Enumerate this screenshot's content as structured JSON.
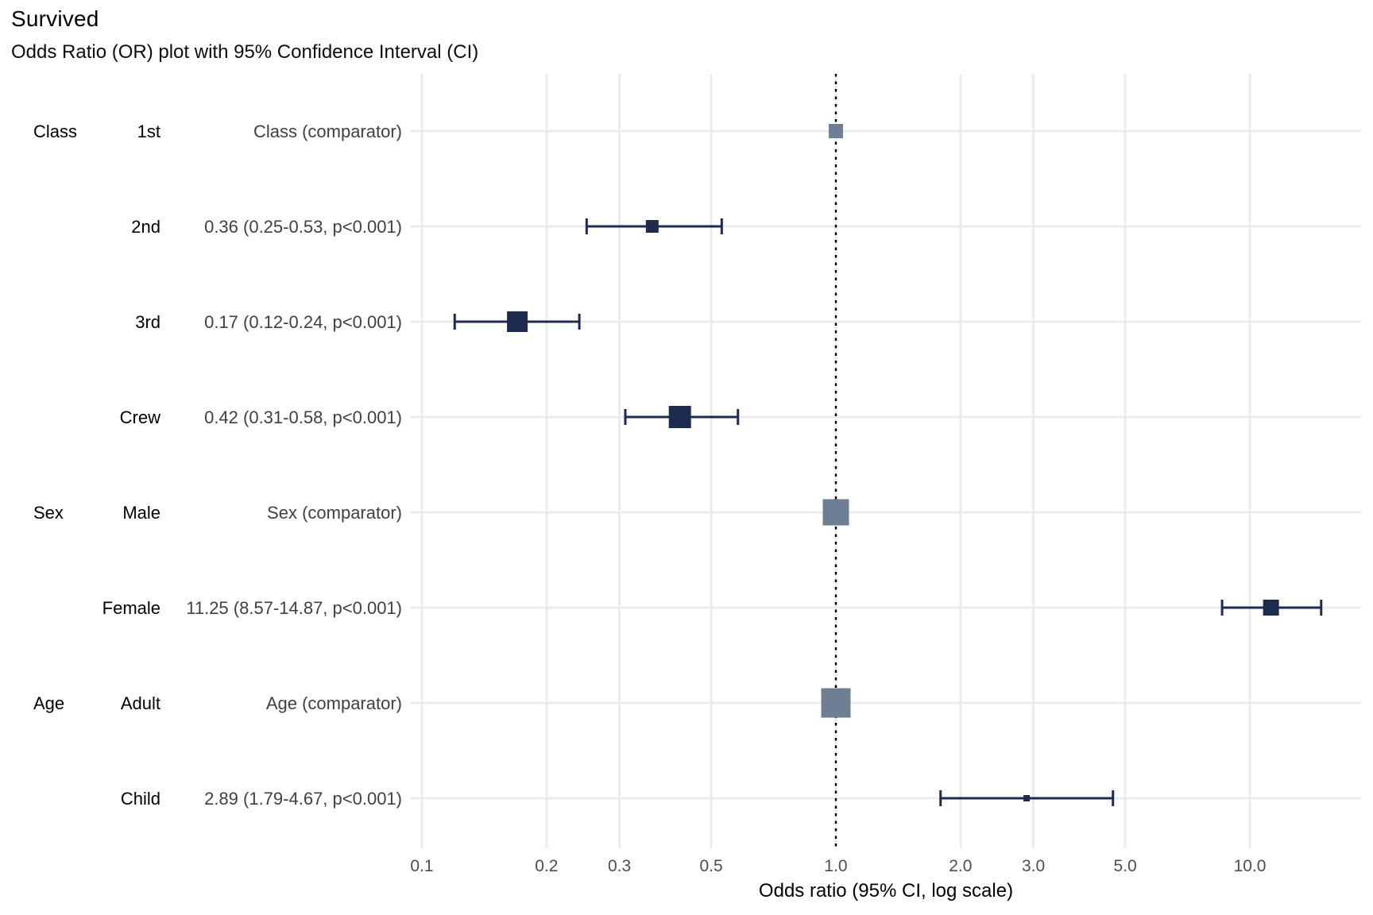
{
  "chart_data": {
    "type": "forest",
    "title": "Survived",
    "subtitle": "Odds Ratio (OR) plot with 95% Confidence Interval (CI)",
    "xlabel": "Odds ratio (95% CI, log scale)",
    "x_scale": "log10",
    "xlim": [
      0.094,
      18.6
    ],
    "grid": true,
    "reference_line": 1.0,
    "x_ticks": [
      0.1,
      0.2,
      0.3,
      0.5,
      1.0,
      2.0,
      3.0,
      5.0,
      10.0
    ],
    "x_tick_labels": [
      "0.1",
      "0.2",
      "0.3",
      "0.5",
      "1.0",
      "2.0",
      "3.0",
      "5.0",
      "10.0"
    ],
    "rows": [
      {
        "variable": "Class",
        "level": "1st",
        "label": "Class (comparator)",
        "or": 1.0,
        "ci_low": null,
        "ci_high": null,
        "comparator": true,
        "size": 18
      },
      {
        "variable": "",
        "level": "2nd",
        "label": "0.36 (0.25-0.53, p<0.001)",
        "or": 0.36,
        "ci_low": 0.25,
        "ci_high": 0.53,
        "comparator": false,
        "size": 16
      },
      {
        "variable": "",
        "level": "3rd",
        "label": "0.17 (0.12-0.24, p<0.001)",
        "or": 0.17,
        "ci_low": 0.12,
        "ci_high": 0.24,
        "comparator": false,
        "size": 26
      },
      {
        "variable": "",
        "level": "Crew",
        "label": "0.42 (0.31-0.58, p<0.001)",
        "or": 0.42,
        "ci_low": 0.31,
        "ci_high": 0.58,
        "comparator": false,
        "size": 28
      },
      {
        "variable": "Sex",
        "level": "Male",
        "label": "Sex (comparator)",
        "or": 1.0,
        "ci_low": null,
        "ci_high": null,
        "comparator": true,
        "size": 33
      },
      {
        "variable": "",
        "level": "Female",
        "label": "11.25 (8.57-14.87, p<0.001)",
        "or": 11.25,
        "ci_low": 8.57,
        "ci_high": 14.87,
        "comparator": false,
        "size": 20
      },
      {
        "variable": "Age",
        "level": "Adult",
        "label": "Age (comparator)",
        "or": 1.0,
        "ci_low": null,
        "ci_high": null,
        "comparator": true,
        "size": 37
      },
      {
        "variable": "",
        "level": "Child",
        "label": "2.89 (1.79-4.67, p<0.001)",
        "or": 2.89,
        "ci_low": 1.79,
        "ci_high": 4.67,
        "comparator": false,
        "size": 8
      }
    ],
    "colors": {
      "estimate_marker": "#1f2a4f",
      "comparator_marker": "#6f7f93",
      "errorbar": "#1f2a4f",
      "gridline": "#ebebeb",
      "reference_line": "#000000",
      "tick_text": "#4d4d4d",
      "estimate_text": "#404040",
      "label_text": "#000000",
      "axis_title_text": "#000000"
    }
  }
}
